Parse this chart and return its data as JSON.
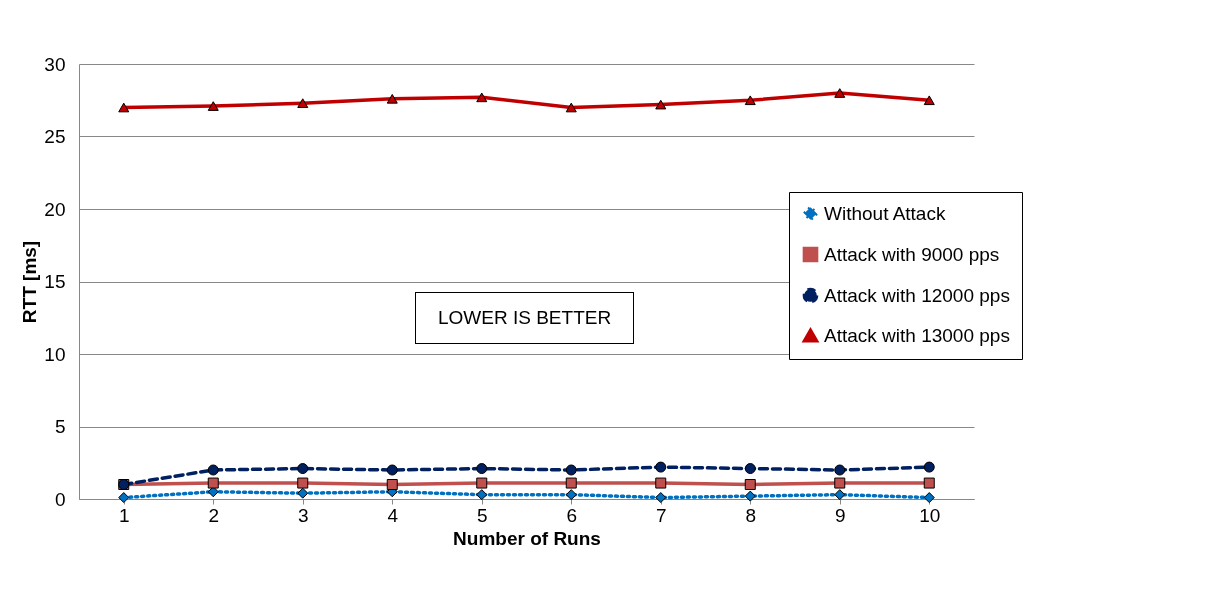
{
  "chart_data": {
    "type": "line",
    "xlabel": "Number of Runs",
    "ylabel": "RTT [ms]",
    "categories": [
      "1",
      "2",
      "3",
      "4",
      "5",
      "6",
      "7",
      "8",
      "9",
      "10"
    ],
    "ylim": [
      0,
      30
    ],
    "yticks": [
      0,
      5,
      10,
      15,
      20,
      25,
      30
    ],
    "grid": "y",
    "legend": "right",
    "annotations": [
      "LOWER IS BETTER"
    ],
    "series": [
      {
        "name": "Without Attack",
        "color": "#0070c0",
        "marker": "diamond",
        "line_style": "dotted",
        "values": [
          0.1,
          0.5,
          0.4,
          0.5,
          0.3,
          0.3,
          0.1,
          0.2,
          0.3,
          0.1
        ]
      },
      {
        "name": "Attack with 9000 pps",
        "color": "#c0504d",
        "marker": "square",
        "line_style": "solid",
        "values": [
          1.0,
          1.1,
          1.1,
          1.0,
          1.1,
          1.1,
          1.1,
          1.0,
          1.1,
          1.1
        ]
      },
      {
        "name": "Attack with 12000 pps",
        "color": "#002060",
        "marker": "circle",
        "line_style": "dashed",
        "values": [
          1.0,
          2.0,
          2.1,
          2.0,
          2.1,
          2.0,
          2.2,
          2.1,
          2.0,
          2.2
        ]
      },
      {
        "name": "Attack with 13000 pps",
        "color": "#c00000",
        "marker": "triangle",
        "line_style": "solid",
        "values": [
          27.0,
          27.1,
          27.3,
          27.6,
          27.7,
          27.0,
          27.2,
          27.5,
          28.0,
          27.5
        ]
      }
    ]
  }
}
